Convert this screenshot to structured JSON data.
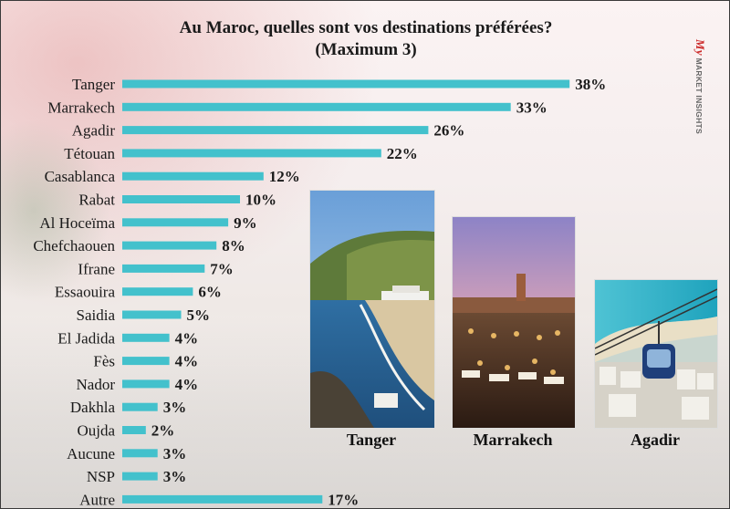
{
  "title": {
    "line1": "Au Maroc, quelles sont vos destinations préférées?",
    "line2": "(Maximum 3)"
  },
  "logo": {
    "script": "My",
    "line": "MARKET INSIGHTS"
  },
  "colors": {
    "bar": "#43c1cc",
    "text": "#1a1a1a",
    "logo": "#cc2a2a"
  },
  "photos": [
    {
      "name": "tanger-photo",
      "caption": "Tanger"
    },
    {
      "name": "marrakech-photo",
      "caption": "Marrakech"
    },
    {
      "name": "agadir-photo",
      "caption": "Agadir"
    }
  ],
  "chart_data": {
    "type": "bar",
    "orientation": "horizontal",
    "title": "Au Maroc, quelles sont vos destinations préférées? (Maximum 3)",
    "categories": [
      "Tanger",
      "Marrakech",
      "Agadir",
      "Tétouan",
      "Casablanca",
      "Rabat",
      "Al Hoceïma",
      "Chefchaouen",
      "Ifrane",
      "Essaouira",
      "Saidia",
      "El Jadida",
      "Fès",
      "Nador",
      "Dakhla",
      "Oujda",
      "Aucune",
      "NSP",
      "Autre"
    ],
    "values": [
      38,
      33,
      26,
      22,
      12,
      10,
      9,
      8,
      7,
      6,
      5,
      4,
      4,
      4,
      3,
      2,
      3,
      3,
      17
    ],
    "value_labels": [
      "38%",
      "33%",
      "26%",
      "22%",
      "12%",
      "10%",
      "9%",
      "8%",
      "7%",
      "6%",
      "5%",
      "4%",
      "4%",
      "4%",
      "3%",
      "2%",
      "3%",
      "3%",
      "17%"
    ],
    "xlim": [
      0,
      38
    ],
    "grid": false,
    "legend": "none"
  }
}
